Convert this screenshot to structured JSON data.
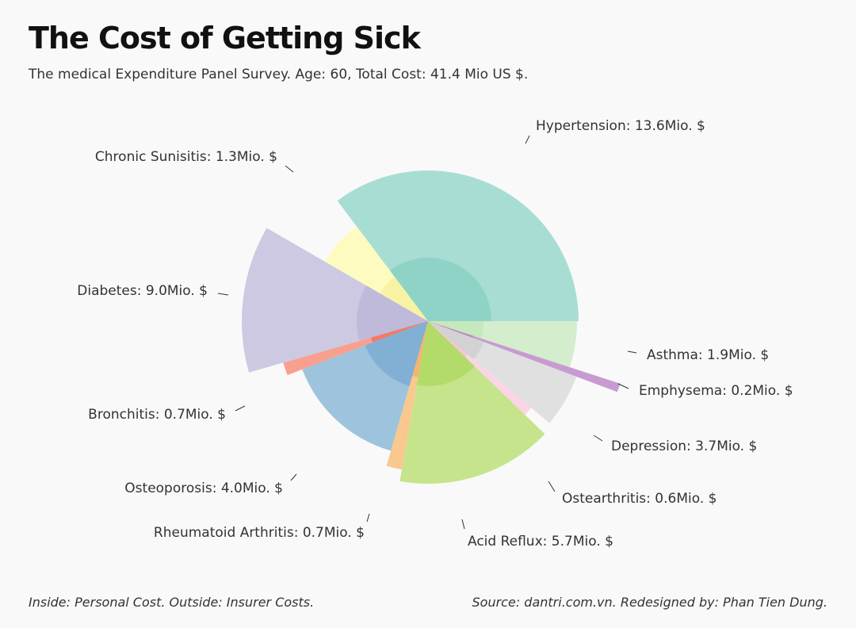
{
  "title": "The Cost of Getting Sick",
  "subtitle": "The medical Expenditure Panel Survey. Age: 60, Total Cost: 41.4 Mio US $.",
  "footer": {
    "note": "Inside: Personal Cost. Outside: Insurer Costs.",
    "source": "Source: dantri.com.vn. Redesigned by: Phan Tien Dung."
  },
  "chart_data": {
    "type": "pie",
    "subtype": "radial-polar-area",
    "unit": "Mio. $",
    "series": [
      {
        "label": "Hypertension",
        "value_label": "13.6Mio. $",
        "value": 13.6,
        "color": "#a8ddd3",
        "inner_color": "#8ed3c6"
      },
      {
        "label": "Asthma",
        "value_label": "1.9Mio. $",
        "value": 1.9,
        "color": "#d4edcc",
        "inner_color": "#c6e8bd"
      },
      {
        "label": "Emphysema",
        "value_label": "0.2Mio. $",
        "value": 0.2,
        "color": "#c79bd0",
        "inner_color": "#b98ac4"
      },
      {
        "label": "Depression",
        "value_label": "3.7Mio. $",
        "value": 3.7,
        "color": "#e0e0e0",
        "inner_color": "#d2d2d2"
      },
      {
        "label": "Ostearthritis",
        "value_label": "0.6Mio. $",
        "value": 0.6,
        "color": "#fbd5e6",
        "inner_color": "#f7c4da"
      },
      {
        "label": "Acid Reflux",
        "value_label": "5.7Mio. $",
        "value": 5.7,
        "color": "#c6e48c",
        "inner_color": "#b3db6a"
      },
      {
        "label": "Rheumatoid Arthritis",
        "value_label": "0.7Mio. $",
        "value": 0.7,
        "color": "#f9c88f",
        "inner_color": "#f5b56e"
      },
      {
        "label": "Osteoporosis",
        "value_label": "4.0Mio. $",
        "value": 4.0,
        "color": "#9ec3dd",
        "inner_color": "#82b0d4"
      },
      {
        "label": "Bronchitis",
        "value_label": "0.7Mio. $",
        "value": 0.7,
        "color": "#f8a08f",
        "inner_color": "#f27a66"
      },
      {
        "label": "Diabetes",
        "value_label": "9.0Mio. $",
        "value": 9.0,
        "color": "#cdc9e3",
        "inner_color": "#bfb9da"
      },
      {
        "label": "Chronic Sunisitis",
        "value_label": "1.3Mio. $",
        "value": 1.3,
        "color": "#fdfbbf",
        "inner_color": "#f8f2a4"
      }
    ]
  }
}
